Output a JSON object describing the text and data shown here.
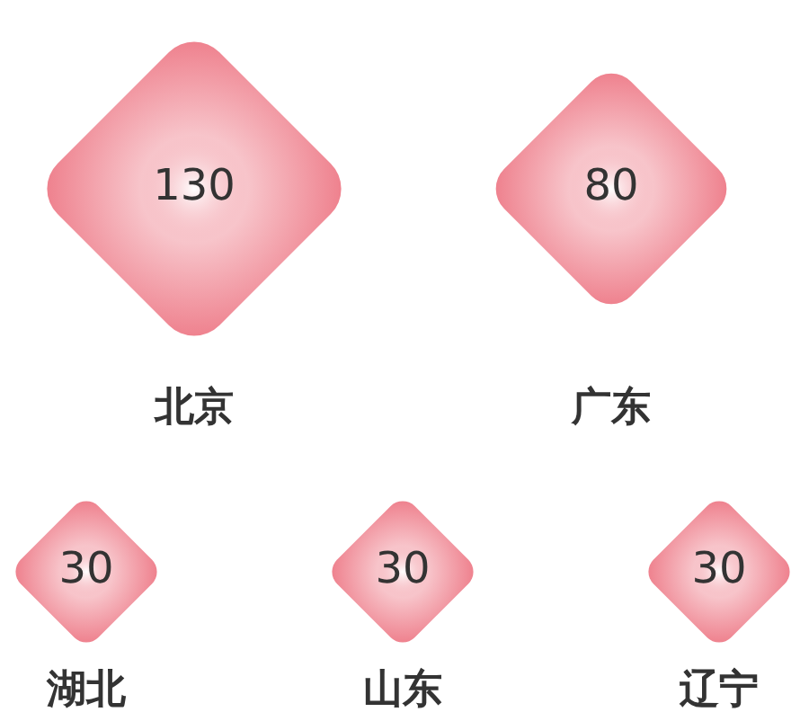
{
  "chart_data": {
    "type": "other",
    "categories": [
      "北京",
      "广东",
      "湖北",
      "山东",
      "辽宁"
    ],
    "values": [
      130,
      80,
      30,
      30,
      30
    ],
    "color": "#ee7d8a",
    "data_labels": true
  }
}
